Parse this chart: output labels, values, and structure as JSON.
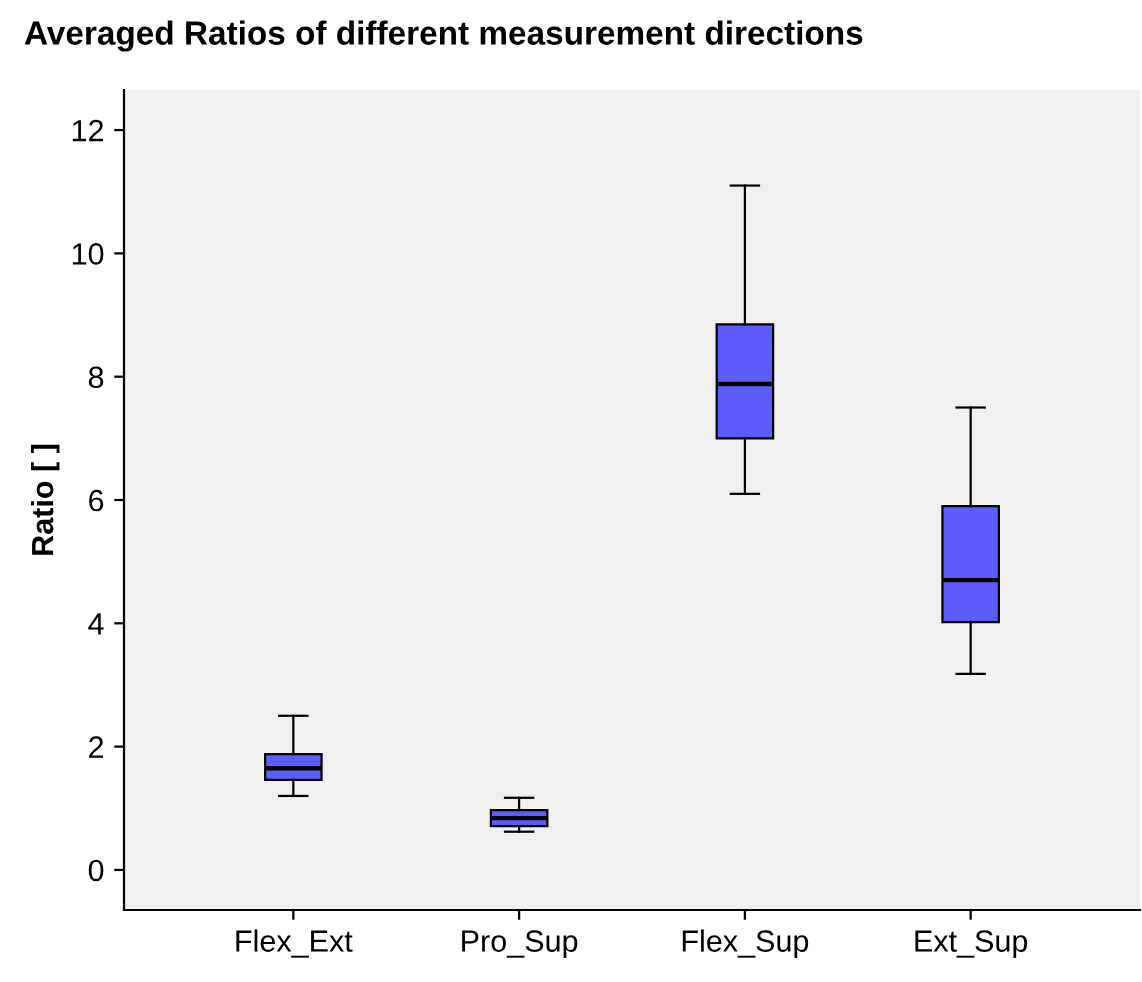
{
  "chart_data": {
    "type": "box",
    "title": "Averaged Ratios of different measurement directions",
    "ylabel": "Ratio [ ]",
    "categories": [
      "Flex_Ext",
      "Pro_Sup",
      "Flex_Sup",
      "Ext_Sup"
    ],
    "boxes": [
      {
        "low": 1.2,
        "q1": 1.46,
        "median": 1.65,
        "q3": 1.88,
        "high": 2.5
      },
      {
        "low": 0.62,
        "q1": 0.71,
        "median": 0.84,
        "q3": 0.97,
        "high": 1.17
      },
      {
        "low": 6.1,
        "q1": 7.0,
        "median": 7.88,
        "q3": 8.85,
        "high": 11.1
      },
      {
        "low": 3.18,
        "q1": 4.02,
        "median": 4.7,
        "q3": 5.9,
        "high": 7.5
      }
    ],
    "color": "#5c5cff",
    "ylim": [
      -0.65,
      12.65
    ],
    "yticks": [
      0,
      2,
      4,
      6,
      8,
      10,
      12
    ],
    "grid": false
  }
}
